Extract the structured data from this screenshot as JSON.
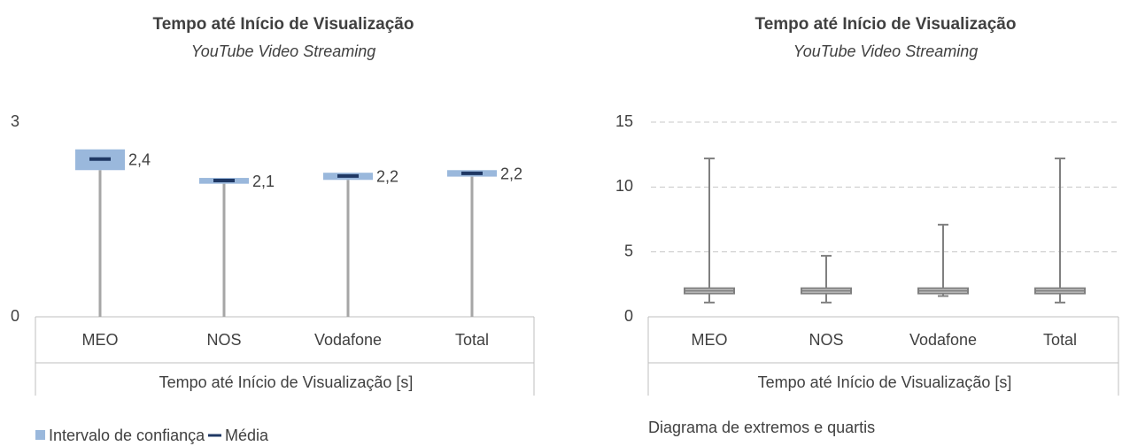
{
  "chart_data": [
    {
      "type": "mean_ci",
      "title": "Tempo até Início de Visualização",
      "subtitle": "YouTube Video Streaming",
      "x_label": "Tempo até Início de Visualização [s]",
      "categories": [
        "MEO",
        "NOS",
        "Vodafone",
        "Total"
      ],
      "ylim": [
        0,
        3
      ],
      "yticks": [
        0,
        3
      ],
      "stem_color": "#a6a6a6",
      "series": [
        {
          "name": "Intervalo de confiança",
          "color": "#9ab8dc",
          "lower": [
            2.26,
            2.05,
            2.11,
            2.16
          ],
          "upper": [
            2.58,
            2.14,
            2.22,
            2.26
          ]
        },
        {
          "name": "Média",
          "color": "#1f3864",
          "values": [
            2.43,
            2.1,
            2.17,
            2.21
          ],
          "value_labels": [
            "2,4",
            "2,1",
            "2,2",
            "2,2"
          ]
        }
      ]
    },
    {
      "type": "box",
      "title": "Tempo até Início de Visualização",
      "subtitle": "YouTube Video Streaming",
      "x_label": "Tempo até Início de Visualização [s]",
      "note": "Diagrama de extremos e quartis",
      "categories": [
        "MEO",
        "NOS",
        "Vodafone",
        "Total"
      ],
      "ylim": [
        0,
        15
      ],
      "yticks": [
        0,
        5,
        10,
        15
      ],
      "grid": true,
      "color": "#808080",
      "min": [
        1.1,
        1.1,
        1.6,
        1.1
      ],
      "q1": [
        1.8,
        1.8,
        1.8,
        1.8
      ],
      "median": [
        2.0,
        2.0,
        2.0,
        2.0
      ],
      "q3": [
        2.2,
        2.2,
        2.2,
        2.2
      ],
      "max": [
        12.2,
        4.7,
        7.1,
        12.2
      ]
    }
  ]
}
